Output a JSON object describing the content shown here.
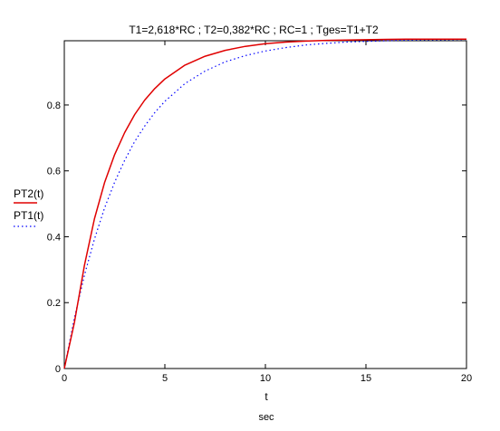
{
  "chart_data": {
    "type": "line",
    "title": "T1=2,618*RC ;  T2=0,382*RC ;   RC=1 ;   Tges=T1+T2",
    "xlabel": "t",
    "xunit": "sec",
    "xlim": [
      0,
      20
    ],
    "ylim": [
      0,
      1
    ],
    "x_ticks": [
      0,
      5,
      10,
      15,
      20
    ],
    "x_tick_labels": [
      "0",
      "5",
      "10",
      "15",
      "20"
    ],
    "y_ticks": [
      0,
      0.2,
      0.4,
      0.6,
      0.8
    ],
    "y_tick_labels": [
      "0",
      "0.2",
      "0.4",
      "0.6",
      "0.8"
    ],
    "grid": false,
    "legend_position": "left",
    "x": [
      0,
      0.5,
      1,
      1.5,
      2,
      2.5,
      3,
      3.5,
      4,
      4.5,
      5,
      6,
      7,
      8,
      9,
      10,
      11,
      12,
      13,
      14,
      15,
      16,
      17,
      18,
      19,
      20
    ],
    "series": [
      {
        "name": "PT2(t)",
        "color": "#e00000",
        "style": "solid",
        "values": [
          0,
          0.139,
          0.313,
          0.455,
          0.564,
          0.649,
          0.716,
          0.771,
          0.815,
          0.85,
          0.879,
          0.921,
          0.948,
          0.966,
          0.978,
          0.986,
          0.991,
          0.994,
          0.996,
          0.997,
          0.998,
          0.999,
          1.0,
          1.0,
          1.0,
          1.0
        ]
      },
      {
        "name": "PT1(t)",
        "color": "#0000ff",
        "style": "dotted",
        "values": [
          0,
          0.153,
          0.283,
          0.393,
          0.487,
          0.565,
          0.632,
          0.689,
          0.736,
          0.777,
          0.811,
          0.865,
          0.903,
          0.931,
          0.95,
          0.964,
          0.974,
          0.982,
          0.987,
          0.991,
          0.993,
          0.995,
          0.997,
          0.998,
          0.998,
          0.999
        ]
      }
    ]
  }
}
